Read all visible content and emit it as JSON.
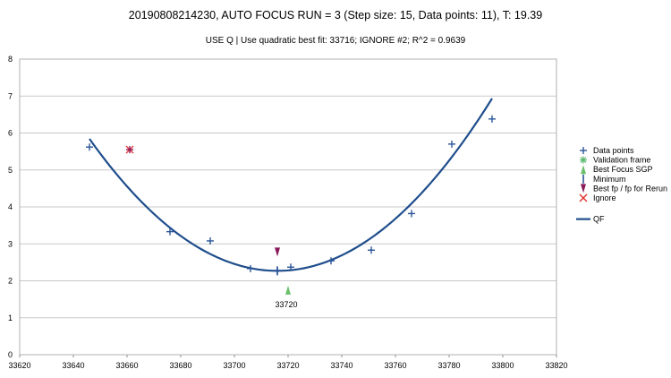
{
  "chart_data": {
    "type": "scatter",
    "title": "20190808214230, AUTO FOCUS RUN = 3 (Step size: 15, Data points: 11), T: 19.39",
    "subtitle": "USE Q  |   Use quadratic best fit: 33716; IGNORE #2; R^2 = 0.9639",
    "xlim": [
      33620,
      33820
    ],
    "ylim": [
      0,
      8
    ],
    "x_ticks": [
      "33620",
      "33640",
      "33660",
      "33680",
      "33700",
      "33720",
      "33740",
      "33760",
      "33780",
      "33800",
      "33820"
    ],
    "y_ticks": [
      "0",
      "1",
      "2",
      "3",
      "4",
      "5",
      "6",
      "7",
      "8"
    ],
    "grid": "horizontal",
    "legend_position": "right",
    "series": [
      {
        "name": "Data points",
        "marker": "plus",
        "color": "#2a5599",
        "points": [
          [
            33646,
            5.62
          ],
          [
            33676,
            3.33
          ],
          [
            33691,
            3.08
          ],
          [
            33706,
            2.33
          ],
          [
            33716,
            2.28
          ],
          [
            33721,
            2.37
          ],
          [
            33736,
            2.54
          ],
          [
            33751,
            2.83
          ],
          [
            33766,
            3.82
          ],
          [
            33781,
            5.7
          ],
          [
            33796,
            6.38
          ]
        ]
      },
      {
        "name": "Validation frame",
        "marker": "asterisk",
        "color": "#5bb86e",
        "points": []
      },
      {
        "name": "Best Focus SGP",
        "marker": "triangle-up",
        "color": "#6cbf6c",
        "points": [
          [
            33720,
            1.75
          ]
        ]
      },
      {
        "name": "Minimum",
        "marker": "vbar",
        "color": "#2a5599",
        "points": [
          [
            33716,
            2.27
          ]
        ]
      },
      {
        "name": "Best fp / fp for Rerun",
        "marker": "triangle-down",
        "color": "#8b1a5a",
        "points": [
          [
            33716,
            2.78
          ]
        ]
      },
      {
        "name": "Ignore",
        "marker": "x",
        "color": "#e03030",
        "points": [
          [
            33661,
            5.55
          ]
        ]
      }
    ],
    "fit": {
      "name": "QF",
      "color": "#1f4e8c",
      "x_range": [
        33646,
        33796
      ],
      "vertex_x": 33716,
      "vertex_y": 2.27,
      "a": 0.000729
    },
    "annotations": [
      {
        "text": "33720",
        "x": 33720,
        "y": 1.75
      }
    ]
  }
}
